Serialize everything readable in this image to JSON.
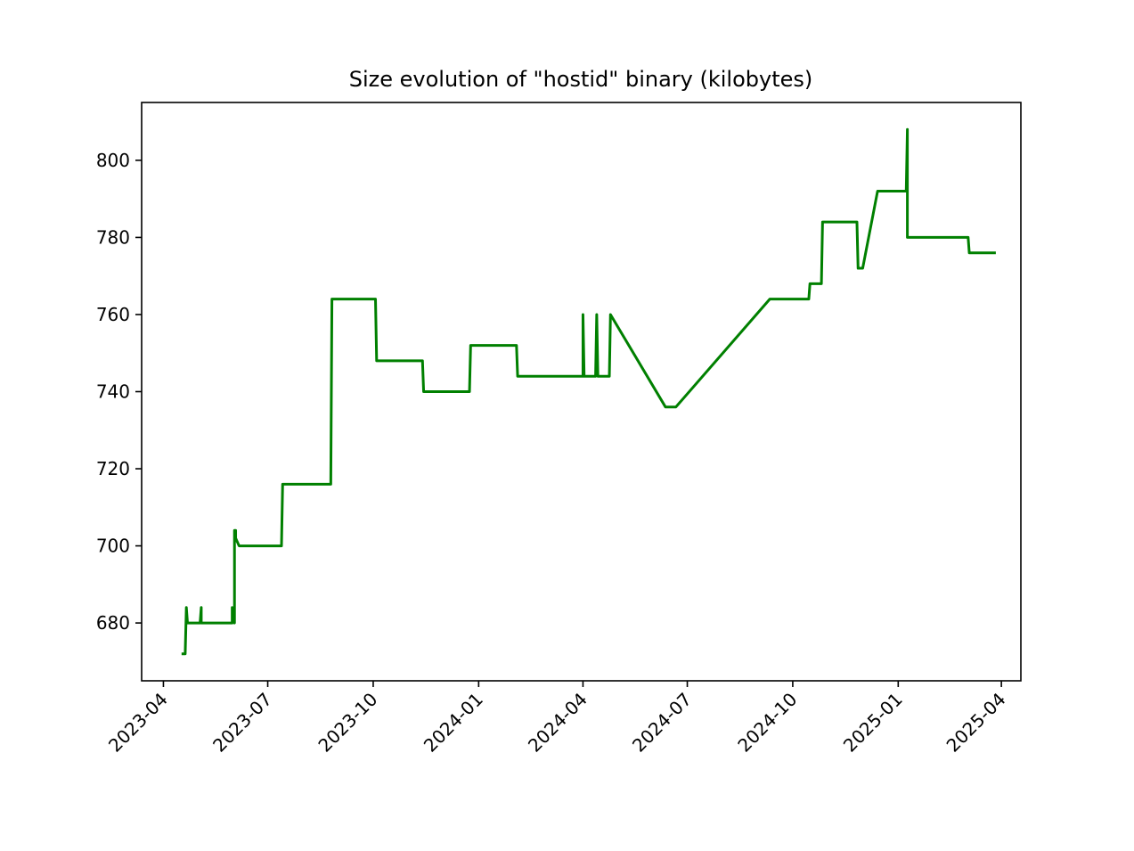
{
  "chart_data": {
    "type": "line",
    "title": "Size evolution of \"hostid\" binary (kilobytes)",
    "xlabel": "",
    "ylabel": "",
    "grid": false,
    "legend": "none",
    "xlim": [
      "2023-03-13",
      "2025-04-18"
    ],
    "ylim": [
      665,
      815
    ],
    "x_ticks": [
      "2023-04",
      "2023-07",
      "2023-10",
      "2024-01",
      "2024-04",
      "2024-07",
      "2024-10",
      "2025-01",
      "2025-04"
    ],
    "y_ticks": [
      680,
      700,
      720,
      740,
      760,
      780,
      800
    ],
    "series": [
      {
        "color": "#008000",
        "x": [
          "2023-04-18",
          "2023-04-20",
          "2023-04-21",
          "2023-04-22",
          "2023-04-22",
          "2023-04-24",
          "2023-05-03",
          "2023-05-04",
          "2023-05-04",
          "2023-05-31",
          "2023-05-31",
          "2023-06-02",
          "2023-06-02",
          "2023-06-03",
          "2023-06-03",
          "2023-06-06",
          "2023-07-13",
          "2023-07-14",
          "2023-08-25",
          "2023-08-26",
          "2023-10-03",
          "2023-10-04",
          "2023-11-13",
          "2023-11-14",
          "2023-12-24",
          "2023-12-25",
          "2024-02-03",
          "2024-02-04",
          "2024-04-01",
          "2024-04-01",
          "2024-04-02",
          "2024-04-12",
          "2024-04-13",
          "2024-04-14",
          "2024-04-24",
          "2024-04-25",
          "2024-06-12",
          "2024-06-21",
          "2024-09-11",
          "2024-10-15",
          "2024-10-16",
          "2024-10-26",
          "2024-10-27",
          "2024-11-26",
          "2024-11-27",
          "2024-12-01",
          "2024-12-14",
          "2025-01-08",
          "2025-01-09",
          "2025-01-09",
          "2025-01-10",
          "2025-03-03",
          "2025-03-04",
          "2025-03-26"
        ],
        "values": [
          672,
          672,
          684,
          680,
          680,
          680,
          680,
          684,
          680,
          680,
          684,
          680,
          704,
          704,
          702,
          700,
          700,
          716,
          716,
          764,
          764,
          748,
          748,
          740,
          740,
          752,
          752,
          744,
          744,
          760,
          744,
          744,
          760,
          744,
          744,
          760,
          736,
          736,
          764,
          764,
          768,
          768,
          784,
          784,
          772,
          772,
          792,
          792,
          808,
          780,
          780,
          780,
          776,
          776
        ]
      }
    ]
  }
}
